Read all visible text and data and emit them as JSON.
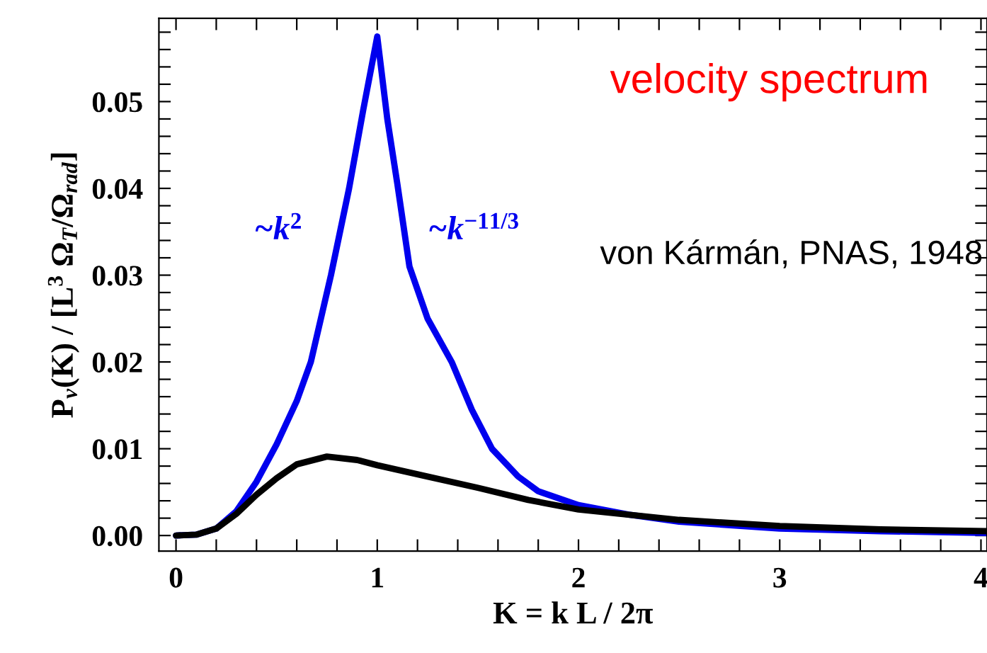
{
  "chart_data": {
    "type": "line",
    "xlabel": "K = k L / 2π",
    "ylabel": "P$_{v}$(K) / [L$^{3}$ Ω$_{T}$/Ω$_{rad}$]",
    "xlim": [
      -0.085,
      4.03
    ],
    "ylim": [
      -0.0018,
      0.0596
    ],
    "xticks": [
      0,
      {
        "value": 0.2,
        "label": null
      },
      {
        "value": 0.4,
        "label": null
      },
      {
        "value": 0.6,
        "label": null
      },
      {
        "value": 0.8,
        "label": null
      },
      1,
      {
        "value": 1.2,
        "label": null
      },
      {
        "value": 1.4,
        "label": null
      },
      {
        "value": 1.6,
        "label": null
      },
      {
        "value": 1.8,
        "label": null
      },
      2,
      {
        "value": 2.2,
        "label": null
      },
      {
        "value": 2.4,
        "label": null
      },
      {
        "value": 2.6,
        "label": null
      },
      {
        "value": 2.8,
        "label": null
      },
      3,
      {
        "value": 3.2,
        "label": null
      },
      {
        "value": 3.4,
        "label": null
      },
      {
        "value": 3.6,
        "label": null
      },
      {
        "value": 3.8,
        "label": null
      },
      4
    ],
    "yticks": [
      {
        "value": 0,
        "label": "0.00"
      },
      {
        "value": 0.002,
        "label": null
      },
      {
        "value": 0.004,
        "label": null
      },
      {
        "value": 0.006,
        "label": null
      },
      {
        "value": 0.008,
        "label": null
      },
      {
        "value": 0.01,
        "label": "0.01"
      },
      {
        "value": 0.012,
        "label": null
      },
      {
        "value": 0.014,
        "label": null
      },
      {
        "value": 0.016,
        "label": null
      },
      {
        "value": 0.018,
        "label": null
      },
      {
        "value": 0.02,
        "label": "0.02"
      },
      {
        "value": 0.022,
        "label": null
      },
      {
        "value": 0.024,
        "label": null
      },
      {
        "value": 0.026,
        "label": null
      },
      {
        "value": 0.028,
        "label": null
      },
      {
        "value": 0.03,
        "label": "0.03"
      },
      {
        "value": 0.032,
        "label": null
      },
      {
        "value": 0.034,
        "label": null
      },
      {
        "value": 0.036,
        "label": null
      },
      {
        "value": 0.038,
        "label": null
      },
      {
        "value": 0.04,
        "label": "0.04"
      },
      {
        "value": 0.042,
        "label": null
      },
      {
        "value": 0.044,
        "label": null
      },
      {
        "value": 0.046,
        "label": null
      },
      {
        "value": 0.048,
        "label": null
      },
      {
        "value": 0.05,
        "label": "0.05"
      },
      {
        "value": 0.052,
        "label": null
      },
      {
        "value": 0.054,
        "label": null
      },
      {
        "value": 0.056,
        "label": null
      },
      {
        "value": 0.058,
        "label": null
      }
    ],
    "grid": false,
    "legend": false,
    "marker": "none",
    "line_style": "solid",
    "series": [
      {
        "color": "#0000ee",
        "x": [
          0,
          0.1,
          0.2,
          0.3,
          0.4,
          0.5,
          0.6,
          0.67,
          0.77,
          0.86,
          0.93,
          1.0,
          1.05,
          1.1,
          1.16,
          1.25,
          1.37,
          1.47,
          1.57,
          1.7,
          1.8,
          2.0,
          2.25,
          2.5,
          3.0,
          3.5,
          4.03
        ],
        "values": [
          0,
          0.0001,
          0.0008,
          0.0028,
          0.0062,
          0.0105,
          0.0155,
          0.02,
          0.03,
          0.04,
          0.049,
          0.0575,
          0.048,
          0.0405,
          0.031,
          0.025,
          0.02,
          0.0145,
          0.01,
          0.0068,
          0.0051,
          0.0035,
          0.0024,
          0.0016,
          0.0008,
          0.0005,
          0.0003
        ]
      },
      {
        "color": "#000000",
        "x": [
          0,
          0.1,
          0.2,
          0.3,
          0.4,
          0.5,
          0.6,
          0.75,
          0.9,
          1.0,
          1.25,
          1.5,
          1.75,
          2.0,
          2.5,
          3.0,
          3.5,
          4.03
        ],
        "values": [
          0,
          0.0001,
          0.0008,
          0.0025,
          0.0047,
          0.0066,
          0.0082,
          0.0091,
          0.0087,
          0.0081,
          0.0068,
          0.0055,
          0.0041,
          0.003,
          0.0018,
          0.0011,
          0.0007,
          0.0005
        ]
      }
    ],
    "annotations": [
      "~k$^{2}$",
      "~k$^{−11/3}$",
      "velocity spectrum",
      "von Kármán, PNAS, 1948"
    ]
  }
}
